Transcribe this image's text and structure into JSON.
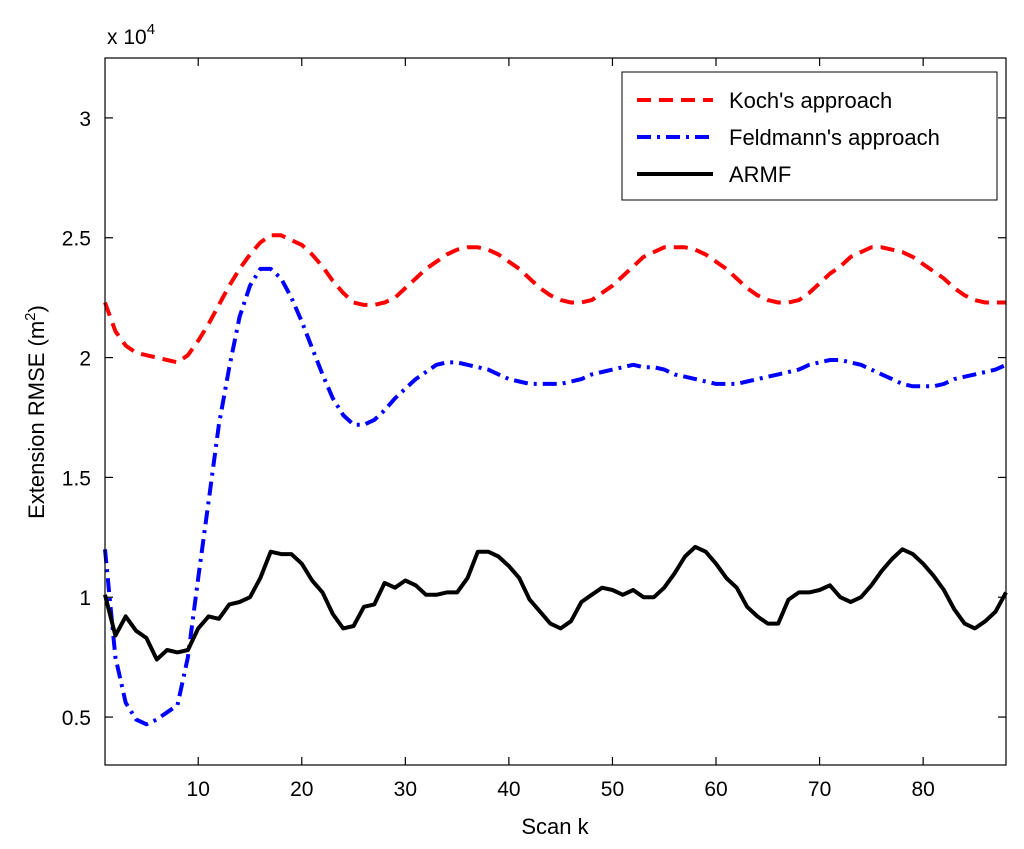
{
  "chart_data": {
    "type": "line",
    "title": "",
    "xlabel": "Scan k",
    "ylabel": "Extension RMSE (m",
    "ylabel_sup": "2",
    "ylabel_close": ")",
    "y_multiplier": "x 10",
    "y_multiplier_exp": "4",
    "xlim": [
      1,
      88
    ],
    "ylim": [
      0.3,
      3.25
    ],
    "x_ticks": [
      10,
      20,
      30,
      40,
      50,
      60,
      70,
      80
    ],
    "y_ticks": [
      0.5,
      1,
      1.5,
      2,
      2.5,
      3
    ],
    "y_tick_labels": [
      "0.5",
      "1",
      "1.5",
      "2",
      "2.5",
      "3"
    ],
    "grid": false,
    "legend_position": "top-right",
    "series": [
      {
        "name": "Koch's approach",
        "color": "#ff0000",
        "style": "dashed",
        "x": [
          1,
          2,
          3,
          4,
          5,
          6,
          7,
          8,
          9,
          10,
          11,
          12,
          13,
          14,
          15,
          16,
          17,
          18,
          19,
          20,
          21,
          22,
          23,
          24,
          25,
          26,
          27,
          28,
          29,
          30,
          31,
          32,
          33,
          34,
          35,
          36,
          37,
          38,
          39,
          40,
          41,
          42,
          43,
          44,
          45,
          46,
          47,
          48,
          49,
          50,
          51,
          52,
          53,
          54,
          55,
          56,
          57,
          58,
          59,
          60,
          61,
          62,
          63,
          64,
          65,
          66,
          67,
          68,
          69,
          70,
          71,
          72,
          73,
          74,
          75,
          76,
          77,
          78,
          79,
          80,
          81,
          82,
          83,
          84,
          85,
          86,
          87,
          88
        ],
        "y": [
          2.23,
          2.11,
          2.05,
          2.02,
          2.01,
          2.0,
          1.99,
          1.98,
          2.01,
          2.07,
          2.14,
          2.22,
          2.3,
          2.37,
          2.43,
          2.48,
          2.51,
          2.51,
          2.49,
          2.47,
          2.43,
          2.38,
          2.32,
          2.27,
          2.23,
          2.22,
          2.22,
          2.23,
          2.25,
          2.29,
          2.33,
          2.37,
          2.4,
          2.43,
          2.45,
          2.46,
          2.46,
          2.45,
          2.43,
          2.4,
          2.37,
          2.33,
          2.29,
          2.26,
          2.24,
          2.23,
          2.23,
          2.24,
          2.27,
          2.3,
          2.34,
          2.38,
          2.42,
          2.44,
          2.46,
          2.46,
          2.46,
          2.45,
          2.43,
          2.4,
          2.37,
          2.33,
          2.29,
          2.26,
          2.24,
          2.23,
          2.23,
          2.24,
          2.27,
          2.31,
          2.35,
          2.38,
          2.42,
          2.44,
          2.46,
          2.46,
          2.45,
          2.44,
          2.42,
          2.39,
          2.36,
          2.33,
          2.29,
          2.26,
          2.24,
          2.23,
          2.23,
          2.23
        ]
      },
      {
        "name": "Feldmann's approach",
        "color": "#0000ff",
        "style": "dashdot",
        "x": [
          1,
          2,
          3,
          4,
          5,
          6,
          7,
          8,
          9,
          10,
          11,
          12,
          13,
          14,
          15,
          16,
          17,
          18,
          19,
          20,
          21,
          22,
          23,
          24,
          25,
          26,
          27,
          28,
          29,
          30,
          31,
          32,
          33,
          34,
          35,
          36,
          37,
          38,
          39,
          40,
          41,
          42,
          43,
          44,
          45,
          46,
          47,
          48,
          49,
          50,
          51,
          52,
          53,
          54,
          55,
          56,
          57,
          58,
          59,
          60,
          61,
          62,
          63,
          64,
          65,
          66,
          67,
          68,
          69,
          70,
          71,
          72,
          73,
          74,
          75,
          76,
          77,
          78,
          79,
          80,
          81,
          82,
          83,
          84,
          85,
          86,
          87,
          88
        ],
        "y": [
          1.2,
          0.75,
          0.56,
          0.49,
          0.47,
          0.49,
          0.52,
          0.55,
          0.75,
          1.08,
          1.4,
          1.72,
          1.96,
          2.17,
          2.3,
          2.37,
          2.37,
          2.33,
          2.25,
          2.15,
          2.04,
          1.93,
          1.83,
          1.76,
          1.72,
          1.72,
          1.74,
          1.78,
          1.83,
          1.87,
          1.91,
          1.94,
          1.97,
          1.98,
          1.98,
          1.97,
          1.96,
          1.95,
          1.93,
          1.91,
          1.9,
          1.89,
          1.89,
          1.89,
          1.89,
          1.9,
          1.91,
          1.93,
          1.94,
          1.95,
          1.96,
          1.97,
          1.96,
          1.96,
          1.95,
          1.93,
          1.92,
          1.91,
          1.9,
          1.89,
          1.89,
          1.89,
          1.9,
          1.91,
          1.92,
          1.93,
          1.94,
          1.95,
          1.97,
          1.98,
          1.99,
          1.99,
          1.98,
          1.97,
          1.95,
          1.93,
          1.91,
          1.89,
          1.88,
          1.88,
          1.88,
          1.89,
          1.91,
          1.92,
          1.93,
          1.94,
          1.95,
          1.97
        ]
      },
      {
        "name": "ARMF",
        "color": "#000000",
        "style": "solid",
        "x": [
          1,
          2,
          3,
          4,
          5,
          6,
          7,
          8,
          9,
          10,
          11,
          12,
          13,
          14,
          15,
          16,
          17,
          18,
          19,
          20,
          21,
          22,
          23,
          24,
          25,
          26,
          27,
          28,
          29,
          30,
          31,
          32,
          33,
          34,
          35,
          36,
          37,
          38,
          39,
          40,
          41,
          42,
          43,
          44,
          45,
          46,
          47,
          48,
          49,
          50,
          51,
          52,
          53,
          54,
          55,
          56,
          57,
          58,
          59,
          60,
          61,
          62,
          63,
          64,
          65,
          66,
          67,
          68,
          69,
          70,
          71,
          72,
          73,
          74,
          75,
          76,
          77,
          78,
          79,
          80,
          81,
          82,
          83,
          84,
          85,
          86,
          87,
          88
        ],
        "y": [
          1.01,
          0.84,
          0.92,
          0.86,
          0.83,
          0.74,
          0.78,
          0.77,
          0.78,
          0.87,
          0.92,
          0.91,
          0.97,
          0.98,
          1.0,
          1.08,
          1.19,
          1.18,
          1.18,
          1.14,
          1.07,
          1.02,
          0.93,
          0.87,
          0.88,
          0.96,
          0.97,
          1.06,
          1.04,
          1.07,
          1.05,
          1.01,
          1.01,
          1.02,
          1.02,
          1.08,
          1.19,
          1.19,
          1.17,
          1.13,
          1.08,
          0.99,
          0.94,
          0.89,
          0.87,
          0.9,
          0.98,
          1.01,
          1.04,
          1.03,
          1.01,
          1.03,
          1.0,
          1.0,
          1.04,
          1.1,
          1.17,
          1.21,
          1.19,
          1.14,
          1.08,
          1.04,
          0.96,
          0.92,
          0.89,
          0.89,
          0.99,
          1.02,
          1.02,
          1.03,
          1.05,
          1.0,
          0.98,
          1.0,
          1.05,
          1.11,
          1.16,
          1.2,
          1.18,
          1.14,
          1.09,
          1.03,
          0.95,
          0.89,
          0.87,
          0.9,
          0.94,
          1.02
        ]
      }
    ]
  }
}
